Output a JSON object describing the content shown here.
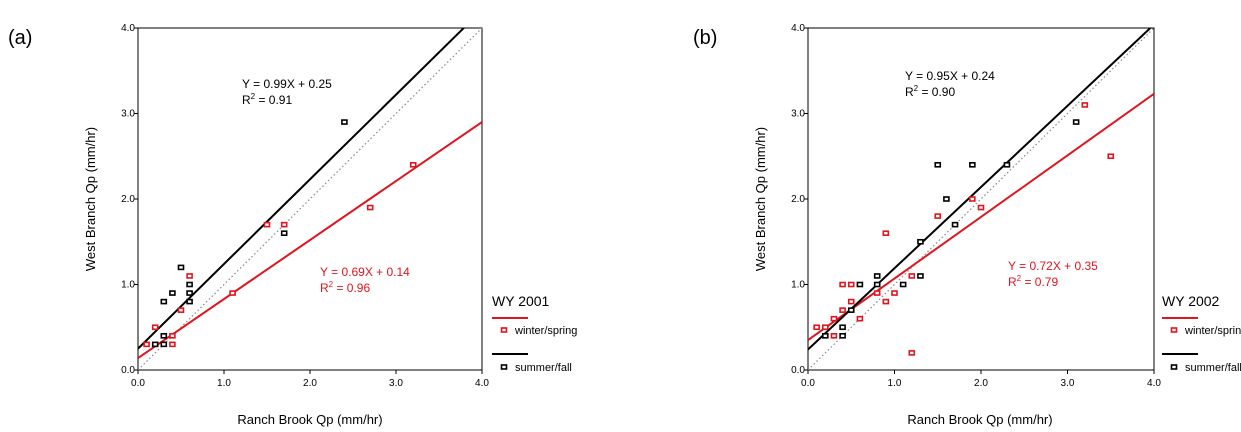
{
  "chart_data": [
    {
      "type": "scatter",
      "panel_label": "(a)",
      "xlabel": "Ranch Brook Qp (mm/hr)",
      "ylabel": "West Branch Qp (mm/hr)",
      "xlim": [
        0,
        4
      ],
      "ylim": [
        0,
        4
      ],
      "ticks": [
        "0.0",
        "1.0",
        "2.0",
        "3.0",
        "4.0"
      ],
      "grid": false,
      "legend": {
        "title": "WY 2001",
        "position": "right"
      },
      "series": [
        {
          "name": "winter/spring",
          "color": "#e0141e",
          "points": [
            [
              0.1,
              0.3
            ],
            [
              0.2,
              0.5
            ],
            [
              0.4,
              0.4
            ],
            [
              0.4,
              0.3
            ],
            [
              0.5,
              0.7
            ],
            [
              0.6,
              1.1
            ],
            [
              1.1,
              0.9
            ],
            [
              1.5,
              1.7
            ],
            [
              1.7,
              1.7
            ],
            [
              2.7,
              1.9
            ],
            [
              3.2,
              2.4
            ]
          ],
          "fit": {
            "slope": 0.69,
            "intercept": 0.14
          },
          "equation": "Y = 0.69X + 0.14",
          "r2_value": "= 0.96"
        },
        {
          "name": "summer/fall",
          "color": "#000000",
          "points": [
            [
              0.2,
              0.3
            ],
            [
              0.3,
              0.3
            ],
            [
              0.3,
              0.4
            ],
            [
              0.3,
              0.8
            ],
            [
              0.4,
              0.9
            ],
            [
              0.5,
              1.2
            ],
            [
              0.6,
              0.8
            ],
            [
              0.6,
              0.9
            ],
            [
              0.6,
              1.0
            ],
            [
              1.7,
              1.6
            ],
            [
              2.4,
              2.9
            ]
          ],
          "fit": {
            "slope": 0.99,
            "intercept": 0.25
          },
          "equation": "Y = 0.99X + 0.25",
          "r2_value": "= 0.91"
        }
      ]
    },
    {
      "type": "scatter",
      "panel_label": "(b)",
      "xlabel": "Ranch Brook Qp (mm/hr)",
      "ylabel": "West Branch Qp (mm/hr)",
      "xlim": [
        0,
        4
      ],
      "ylim": [
        0,
        4
      ],
      "ticks": [
        "0.0",
        "1.0",
        "2.0",
        "3.0",
        "4.0"
      ],
      "grid": false,
      "legend": {
        "title": "WY 2002",
        "position": "right"
      },
      "series": [
        {
          "name": "winter/spring",
          "color": "#e0141e",
          "points": [
            [
              0.1,
              0.5
            ],
            [
              0.2,
              0.5
            ],
            [
              0.3,
              0.4
            ],
            [
              0.3,
              0.6
            ],
            [
              0.4,
              0.7
            ],
            [
              0.4,
              1.0
            ],
            [
              0.5,
              1.0
            ],
            [
              0.5,
              0.8
            ],
            [
              0.6,
              0.6
            ],
            [
              0.8,
              0.9
            ],
            [
              0.9,
              0.8
            ],
            [
              0.9,
              1.6
            ],
            [
              1.0,
              0.9
            ],
            [
              1.2,
              1.1
            ],
            [
              1.2,
              0.2
            ],
            [
              1.5,
              1.8
            ],
            [
              1.9,
              2.0
            ],
            [
              2.0,
              1.9
            ],
            [
              3.2,
              3.1
            ],
            [
              3.5,
              2.5
            ]
          ],
          "fit": {
            "slope": 0.72,
            "intercept": 0.35
          },
          "equation": "Y = 0.72X + 0.35",
          "r2_value": "= 0.79"
        },
        {
          "name": "summer/fall",
          "color": "#000000",
          "points": [
            [
              0.2,
              0.4
            ],
            [
              0.4,
              0.4
            ],
            [
              0.4,
              0.5
            ],
            [
              0.5,
              0.7
            ],
            [
              0.6,
              1.0
            ],
            [
              0.8,
              1.0
            ],
            [
              0.8,
              1.1
            ],
            [
              1.1,
              1.0
            ],
            [
              1.3,
              1.1
            ],
            [
              1.3,
              1.5
            ],
            [
              1.5,
              2.4
            ],
            [
              1.6,
              2.0
            ],
            [
              1.7,
              1.7
            ],
            [
              1.9,
              2.4
            ],
            [
              2.3,
              2.4
            ],
            [
              3.1,
              2.9
            ]
          ],
          "fit": {
            "slope": 0.95,
            "intercept": 0.24
          },
          "equation": "Y = 0.95X + 0.24",
          "r2_value": "= 0.90"
        }
      ]
    }
  ]
}
